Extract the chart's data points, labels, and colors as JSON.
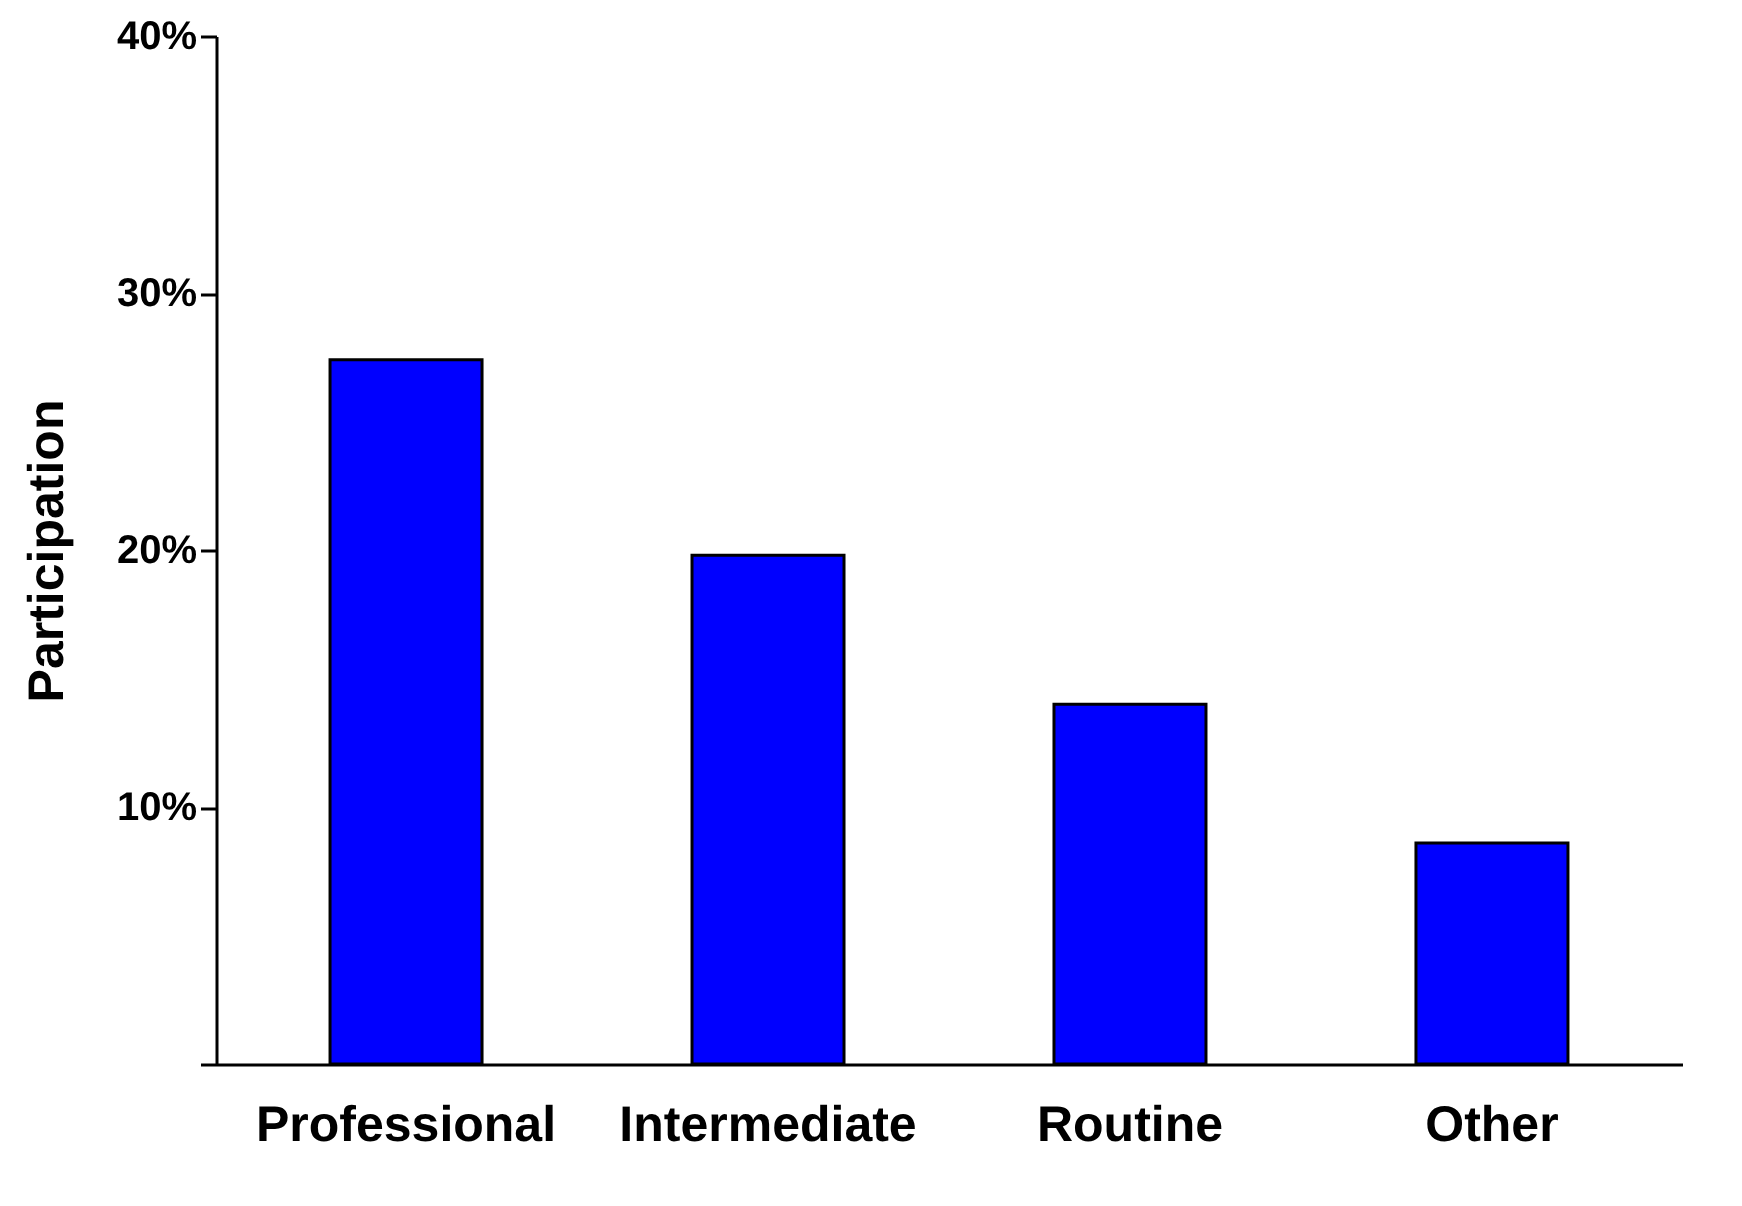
{
  "chart_data": {
    "type": "bar",
    "ylabel": "Participation",
    "categories": [
      "Professional",
      "Intermediate",
      "Routine",
      "Other"
    ],
    "values": [
      27.4,
      19.8,
      14.0,
      8.6
    ],
    "color": "#0000ff",
    "ylim": [
      0,
      40
    ],
    "yticks": [
      {
        "value": 0,
        "label": null
      },
      {
        "value": 10,
        "label": "10%"
      },
      {
        "value": 20,
        "label": "20%"
      },
      {
        "value": 30,
        "label": "30%"
      },
      {
        "value": 40,
        "label": "40%"
      }
    ],
    "grid": false
  }
}
